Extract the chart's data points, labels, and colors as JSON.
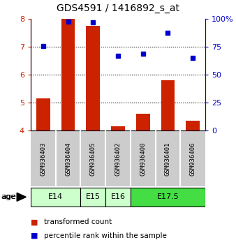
{
  "title": "GDS4591 / 1416892_s_at",
  "samples": [
    "GSM936403",
    "GSM936404",
    "GSM936405",
    "GSM936402",
    "GSM936400",
    "GSM936401",
    "GSM936406"
  ],
  "transformed_counts": [
    5.15,
    8.0,
    7.75,
    4.15,
    4.6,
    5.8,
    4.35
  ],
  "percentile_ranks": [
    76,
    98,
    97,
    67,
    69,
    88,
    65
  ],
  "bar_color": "#cc2200",
  "dot_color": "#0000cc",
  "ylim_left": [
    4,
    8
  ],
  "ylim_right": [
    0,
    100
  ],
  "yticks_left": [
    4,
    5,
    6,
    7,
    8
  ],
  "yticks_right": [
    0,
    25,
    50,
    75,
    100
  ],
  "yticklabels_right": [
    "0",
    "25",
    "50",
    "75",
    "100%"
  ],
  "age_groups": [
    {
      "label": "E14",
      "start": 0,
      "end": 2,
      "color": "#ccffcc"
    },
    {
      "label": "E15",
      "start": 2,
      "end": 3,
      "color": "#ccffcc"
    },
    {
      "label": "E16",
      "start": 3,
      "end": 4,
      "color": "#ccffcc"
    },
    {
      "label": "E17.5",
      "start": 4,
      "end": 7,
      "color": "#44dd44"
    }
  ],
  "bar_baseline": 4,
  "legend_red_label": "transformed count",
  "legend_blue_label": "percentile rank within the sample",
  "age_label": "age",
  "background_color": "#ffffff",
  "sample_bg_color": "#cccccc",
  "sample_bg_alt": "#bbbbbb"
}
